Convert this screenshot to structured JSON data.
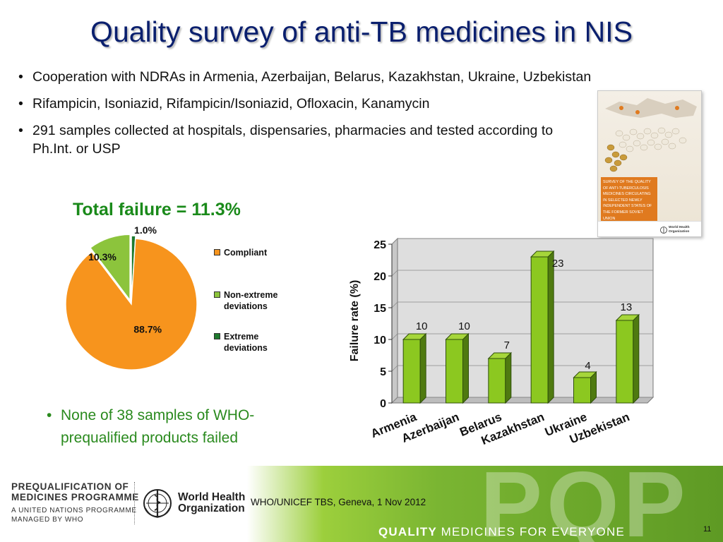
{
  "title": "Quality survey of anti-TB medicines in NIS",
  "bullets": [
    "Cooperation with NDRAs in Armenia, Azerbaijan, Belarus, Kazakhstan, Ukraine, Uzbekistan",
    "Rifampicin, Isoniazid, Rifampicin/Isoniazid, Ofloxacin, Kanamycin",
    "291 samples collected at hospitals, dispensaries, pharmacies and tested according to Ph.Int. or USP"
  ],
  "cover": {
    "text": "Survey of the quality of anti-tuberculosis medicines circulating in selected newly independent states of the former Soviet Union",
    "org": "World Health Organization"
  },
  "pie_title": "Total failure = 11.3%",
  "note": "None of 38 samples of WHO-prequalified products failed",
  "chart_data": [
    {
      "type": "pie",
      "title": "Total failure = 11.3%",
      "slices": [
        {
          "name": "Compliant",
          "value": 88.7,
          "label": "88.7%",
          "color": "#f7941d"
        },
        {
          "name": "Non-extreme deviations",
          "value": 10.3,
          "label": "10.3%",
          "color": "#8cc43c"
        },
        {
          "name": "Extreme deviations",
          "value": 1.0,
          "label": "1.0%",
          "color": "#1e7a2e"
        }
      ],
      "legend_position": "right"
    },
    {
      "type": "bar",
      "categories": [
        "Armenia",
        "Azerbaijan",
        "Belarus",
        "Kazakhstan",
        "Ukraine",
        "Uzbekistan"
      ],
      "values": [
        10,
        10,
        7,
        23,
        4,
        13
      ],
      "data_labels": [
        "10",
        "10",
        "7",
        "23",
        "4",
        "13"
      ],
      "ylabel": "Failure rate (%)",
      "ylim": [
        0,
        25
      ],
      "yticks": [
        "0",
        "5",
        "10",
        "15",
        "20",
        "25"
      ],
      "bar_color": "#8cc820",
      "grid": true
    }
  ],
  "footer": {
    "programme_line1": "PREQUALIFICATION OF",
    "programme_line2": "MEDICINES PROGRAMME",
    "programme_line3": "A UNITED NATIONS PROGRAMME",
    "programme_line4": "MANAGED BY WHO",
    "who_line1": "World Health",
    "who_line2": "Organization",
    "event": "WHO/UNICEF TBS, Geneva, 1 Nov 2012",
    "pqp": "PQP",
    "tagline_bold": "QUALITY",
    "tagline_rest": "MEDICINES FOR EVERYONE",
    "page_number": "11"
  }
}
